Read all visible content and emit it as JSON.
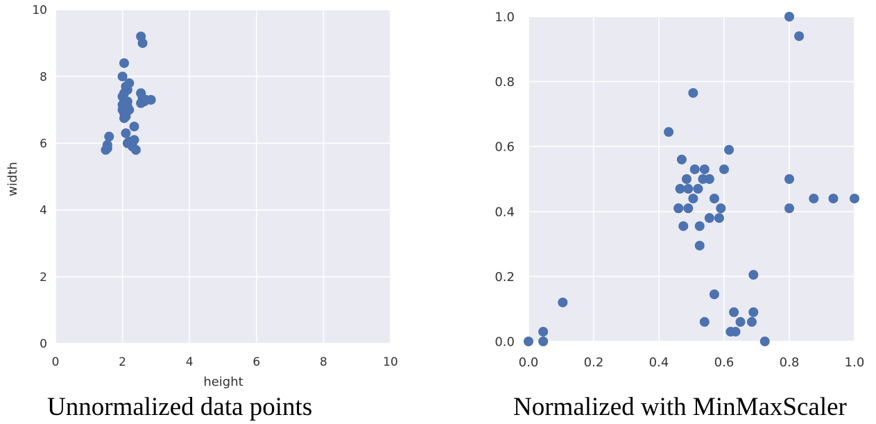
{
  "colors": {
    "panel_bg": "#eaeaf2",
    "grid": "#ffffff",
    "point": "#4c72b0",
    "tick_text": "#333333"
  },
  "captions": {
    "left": "Unnormalized data points",
    "right": "Normalized with MinMaxScaler"
  },
  "chart_data": [
    {
      "type": "scatter",
      "title": "",
      "xlabel": "height",
      "ylabel": "width",
      "xlim": [
        0,
        10
      ],
      "ylim": [
        0,
        10
      ],
      "xticks": [
        0,
        2,
        4,
        6,
        8,
        10
      ],
      "yticks": [
        0,
        2,
        4,
        6,
        8,
        10
      ],
      "xtick_labels": [
        "0",
        "2",
        "4",
        "6",
        "8",
        "10"
      ],
      "ytick_labels": [
        "0",
        "2",
        "4",
        "6",
        "8",
        "10"
      ],
      "grid": true,
      "x": [
        1.5,
        1.55,
        1.6,
        1.55,
        2.0,
        2.05,
        2.1,
        2.15,
        2.2,
        2.05,
        2.0,
        2.05,
        2.1,
        2.0,
        2.05,
        2.15,
        2.0,
        2.05,
        2.1,
        2.05,
        2.2,
        2.15,
        2.1,
        2.15,
        2.35,
        2.2,
        2.3,
        2.35,
        2.25,
        2.4,
        2.3,
        2.55,
        2.6,
        2.55,
        2.55,
        2.6,
        2.65,
        2.7,
        2.85
      ],
      "y": [
        5.8,
        5.85,
        6.2,
        5.95,
        8.0,
        8.4,
        7.7,
        7.6,
        7.8,
        7.5,
        7.4,
        7.3,
        7.2,
        7.15,
        7.05,
        7.1,
        7.0,
        6.9,
        6.8,
        6.75,
        7.0,
        7.25,
        6.3,
        6.0,
        6.5,
        6.05,
        5.9,
        6.1,
        6.0,
        5.8,
        5.9,
        9.2,
        9.0,
        7.5,
        7.2,
        7.35,
        7.25,
        7.3,
        7.3
      ]
    },
    {
      "type": "scatter",
      "title": "",
      "xlabel": "",
      "ylabel": "",
      "xlim": [
        0.0,
        1.0
      ],
      "ylim": [
        0.0,
        1.0
      ],
      "xticks": [
        0.0,
        0.2,
        0.4,
        0.6,
        0.8,
        1.0
      ],
      "yticks": [
        0.0,
        0.2,
        0.4,
        0.6,
        0.8,
        1.0
      ],
      "xtick_labels": [
        "0.0",
        "0.2",
        "0.4",
        "0.6",
        "0.8",
        "1.0"
      ],
      "ytick_labels": [
        "0.0",
        "0.2",
        "0.4",
        "0.6",
        "0.8",
        "1.0"
      ],
      "grid": true,
      "x": [
        0.0,
        0.045,
        0.045,
        0.105,
        0.43,
        0.47,
        0.505,
        0.54,
        0.6,
        0.615,
        0.465,
        0.485,
        0.51,
        0.535,
        0.555,
        0.46,
        0.49,
        0.52,
        0.57,
        0.505,
        0.46,
        0.49,
        0.59,
        0.475,
        0.525,
        0.555,
        0.585,
        0.525,
        0.57,
        0.69,
        0.54,
        0.62,
        0.635,
        0.65,
        0.69,
        0.685,
        0.63,
        0.725,
        0.8,
        0.83,
        0.8,
        0.8,
        0.875,
        0.935,
        1.0
      ],
      "y": [
        0.0,
        0.03,
        0.0,
        0.12,
        0.645,
        0.56,
        0.765,
        0.53,
        0.53,
        0.59,
        0.47,
        0.5,
        0.53,
        0.5,
        0.5,
        0.41,
        0.47,
        0.47,
        0.44,
        0.44,
        0.41,
        0.41,
        0.41,
        0.355,
        0.355,
        0.38,
        0.38,
        0.295,
        0.145,
        0.205,
        0.06,
        0.03,
        0.03,
        0.06,
        0.09,
        0.06,
        0.09,
        0.0,
        1.0,
        0.94,
        0.5,
        0.41,
        0.44,
        0.44,
        0.44
      ]
    }
  ]
}
